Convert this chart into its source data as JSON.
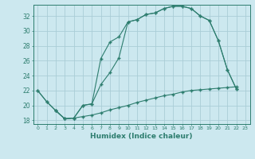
{
  "xlabel": "Humidex (Indice chaleur)",
  "ylabel": "",
  "bg_color": "#cce8ef",
  "grid_color": "#aacdd6",
  "line_color": "#2d7d6e",
  "xlim": [
    -0.5,
    23.5
  ],
  "ylim": [
    17.5,
    33.5
  ],
  "xticks": [
    0,
    1,
    2,
    3,
    4,
    5,
    6,
    7,
    8,
    9,
    10,
    11,
    12,
    13,
    14,
    15,
    16,
    17,
    18,
    19,
    20,
    21,
    22,
    23
  ],
  "yticks": [
    18,
    20,
    22,
    24,
    26,
    28,
    30,
    32
  ],
  "line1_x": [
    0,
    1,
    2,
    3,
    4,
    5,
    6,
    7,
    8,
    9,
    10,
    11,
    12,
    13,
    14,
    15,
    16,
    17,
    18,
    19,
    20,
    21,
    22
  ],
  "line1_y": [
    22,
    20.5,
    19.3,
    18.2,
    18.3,
    20.0,
    20.2,
    26.3,
    28.5,
    29.2,
    31.2,
    31.5,
    32.2,
    32.4,
    33.0,
    33.3,
    33.3,
    33.0,
    32.0,
    31.4,
    28.7,
    24.8,
    22.2
  ],
  "line2_x": [
    0,
    1,
    2,
    3,
    4,
    5,
    6,
    7,
    8,
    9,
    10,
    11,
    12,
    13,
    14,
    15,
    16,
    17,
    18,
    19,
    20,
    21,
    22
  ],
  "line2_y": [
    22,
    20.5,
    19.3,
    18.2,
    18.3,
    20.0,
    20.2,
    22.8,
    24.4,
    26.4,
    31.2,
    31.5,
    32.2,
    32.4,
    33.0,
    33.3,
    33.3,
    33.0,
    32.0,
    31.4,
    28.7,
    24.8,
    22.2
  ],
  "line3_x": [
    2,
    3,
    4,
    5,
    6,
    7,
    8,
    9,
    10,
    11,
    12,
    13,
    14,
    15,
    16,
    17,
    18,
    19,
    20,
    21,
    22
  ],
  "line3_y": [
    19.3,
    18.2,
    18.3,
    18.5,
    18.7,
    19.0,
    19.4,
    19.7,
    20.0,
    20.4,
    20.7,
    21.0,
    21.3,
    21.5,
    21.8,
    22.0,
    22.1,
    22.2,
    22.3,
    22.4,
    22.5
  ]
}
